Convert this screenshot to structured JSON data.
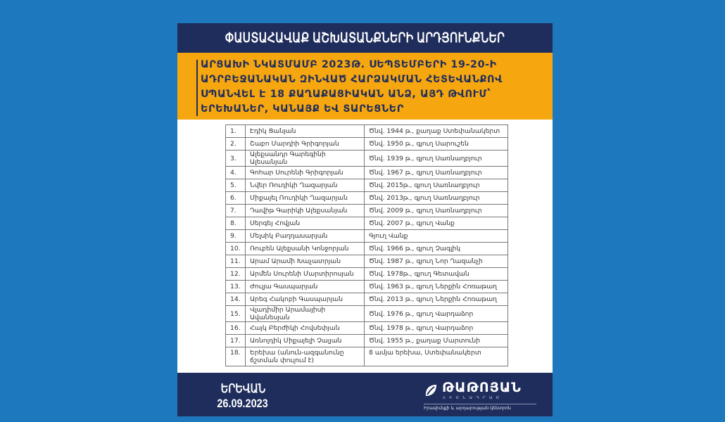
{
  "header": {
    "title": "ՓԱՍՏԱՀԱՎԱՔ ԱՇԽԱՏԱՆՔՆԵՐԻ ԱՐԴՅՈՒՆՔՆԵՐ",
    "subtitle": "ԱՐՑԱԽԻ ՆԿԱՏՄԱՄԲ 2023Թ. ՍԵՊՏԵՄԲԵՐԻ 19-20-Ի ԱԴՐԲԵՋԱՆԱԿԱՆ ԶԻՆՎԱԾ ՀԱՐՁԱԿՄԱՆ ՀԵՏԵՎԱՆՔՈՎ ՍՊԱՆՎԵԼ Է 18 ՔԱՂԱՔԱՑԻԱԿԱՆ ԱՆՁ, ԱՅԴ ԹՎՈՒՄ՝ ԵՐԵԽԱՆԵՐ, ԿԱՆԱՅՔ ԵՎ ՏԱՐԵՑՆԵՐ"
  },
  "colors": {
    "background": "#1d78bd",
    "navy": "#1f2d5c",
    "orange": "#f6a60f"
  },
  "table": {
    "rows": [
      {
        "num": "1.",
        "name": "Էդիկ Ցանյան",
        "info": "Ծնվ.  1944 թ., քաղաք Ստեփանակերտ"
      },
      {
        "num": "2.",
        "name": "Շաբո Մարդիի Գրիգորյան",
        "info": "Ծնվ. 1950 թ.,  գյուղ Սարուշեն"
      },
      {
        "num": "3.",
        "name": "Ալեքսանդր Գարեգինի Ալեսանյան",
        "info": "Ծնվ. 1939 թ.,  գյուղ Սառնաղբյուր"
      },
      {
        "num": "4.",
        "name": "Գոհար Սուրենի Գրիգորյան",
        "info": "Ծնվ. 1967 թ.,  գյուղ Սառնաղբյուր"
      },
      {
        "num": "5.",
        "name": "Նվեր Ռուդիկի Ղազարյան",
        "info": "Ծնվ. 2015թ.,  գյուղ Սառնաղբյուր"
      },
      {
        "num": "6.",
        "name": "Միքայել Ռուդիկի Ղազարյան",
        "info": "Ծնվ. 2013թ.,  գյուղ Սառնաղբյուր"
      },
      {
        "num": "7.",
        "name": "Դավիթ Գարիկի Ալեքսանյան",
        "info": "Ծնվ. 2009 թ.,  գյուղ Սառնաղբյուր"
      },
      {
        "num": "8.",
        "name": "Սերգեյ Հովյան",
        "info": "Ծնվ. 2007 թ.,  գյուղ Վանք"
      },
      {
        "num": "9.",
        "name": "Մելսիկ Բաղդասարյան",
        "info": "Գյուղ Վանք"
      },
      {
        "num": "10.",
        "name": "Ռուբեն Ալեքսանի Կոնջորյան",
        "info": "Ծնվ. 1966 թ.,  գյուղ Չագլիկ"
      },
      {
        "num": "11.",
        "name": "Արամ Արամի Խաչատրյան",
        "info": "Ծնվ. 1987 թ., գյուղ Նոր Ղազանչի"
      },
      {
        "num": "12.",
        "name": "Արմեն Սուրենի Մարտիրոսյան",
        "info": "Ծնվ. 1978թ., գյուղ Գետավան"
      },
      {
        "num": "13.",
        "name": "Ժուլյա Գասպարյան",
        "info": "Ծնվ. 1963 թ., գյուղ Ներքին Հոռաթաղ"
      },
      {
        "num": "14.",
        "name": "Արեգ Հակոբի Գասպարյան",
        "info": "Ծնվ. 2013 թ., գյուղ Ներքին Հոռաթաղ"
      },
      {
        "num": "15.",
        "name": "Վլադիմիր Արամայիսի Ավանեսյան",
        "info": "Ծնվ. 1976 թ., գյուղ Վարդաձոր"
      },
      {
        "num": "16.",
        "name": "Հայկ Բերժիկի Հովսեփյան",
        "info": "Ծնվ. 1978 թ., գյուղ Վարդաձոր"
      },
      {
        "num": "17.",
        "name": "Առնոլդիկ Միքայելի Չալյան",
        "info": "Ծնվ. 1955 թ., քաղաք Մարտունի"
      },
      {
        "num": "18.",
        "name": "Երեխա (անուն-ազգանունը ճշտման փուլում է)",
        "info": "8 ամյա երեխա, Ստեփանակերտ"
      }
    ]
  },
  "footer": {
    "city": "ԵՐԵՎԱՆ",
    "date": "26.09.2023",
    "logo": {
      "icon": "leaf-icon",
      "brand": "ԹԱԹՈՅԱՆ",
      "brand_sub": "ՀԻՄՆԱԴՐԱՄ",
      "tagline": "Իրավունքի և արդարության կենտրոն"
    }
  }
}
